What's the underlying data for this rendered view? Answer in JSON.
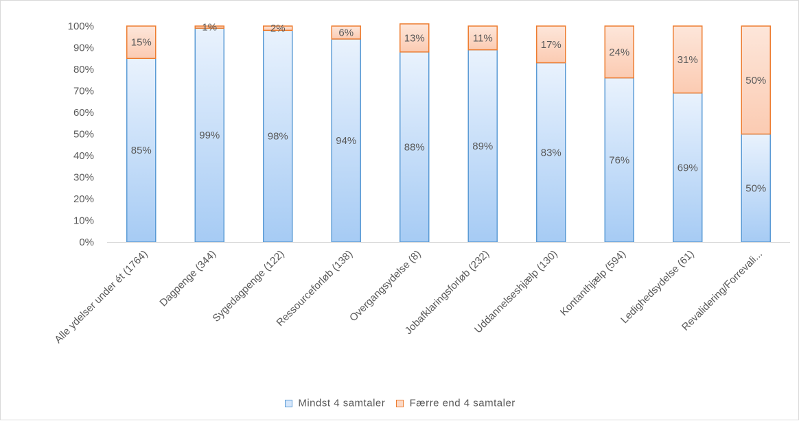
{
  "chart_data": {
    "type": "bar",
    "stacked": true,
    "categories": [
      "Alle ydelser under ét (1764)",
      "Dagpenge (344)",
      "Sygedagpenge (122)",
      "Ressourceforløb (138)",
      "Overgangsydelse (8)",
      "Jobafklaringsforløb (232)",
      "Uddannelseshjælp (130)",
      "Kontanthjælp (594)",
      "Ledighedsydelse (61)",
      "Revalidering/Forrevali..."
    ],
    "series": [
      {
        "name": "Mindst 4 samtaler",
        "values": [
          85,
          99,
          98,
          94,
          88,
          89,
          83,
          76,
          69,
          50
        ],
        "labels": [
          "85%",
          "99%",
          "98%",
          "94%",
          "88%",
          "89%",
          "83%",
          "76%",
          "69%",
          "50%"
        ]
      },
      {
        "name": "Færre end 4 samtaler",
        "values": [
          15,
          1,
          2,
          6,
          13,
          11,
          17,
          24,
          31,
          50
        ],
        "labels": [
          "15%",
          "1%",
          "2%",
          "6%",
          "13%",
          "11%",
          "17%",
          "24%",
          "31%",
          "50%"
        ]
      }
    ],
    "yticks": [
      "0%",
      "10%",
      "20%",
      "30%",
      "40%",
      "50%",
      "60%",
      "70%",
      "80%",
      "90%",
      "100%"
    ],
    "ylim": [
      0,
      100
    ],
    "xlabel": "",
    "ylabel": "",
    "title": "",
    "legend_position": "bottom",
    "grid": false,
    "colors": {
      "series1_fill_top": "#e6f0fc",
      "series1_fill_bottom": "#a9cdf5",
      "series1_stroke": "#5b9bd5",
      "series2_fill_top": "#fde2d4",
      "series2_fill_bottom": "#fbcdb5",
      "series2_stroke": "#ed7d31",
      "axis": "#d9d9d9",
      "text": "#595959"
    }
  },
  "legend": {
    "items": [
      "Mindst 4 samtaler",
      "Færre end 4 samtaler"
    ]
  }
}
